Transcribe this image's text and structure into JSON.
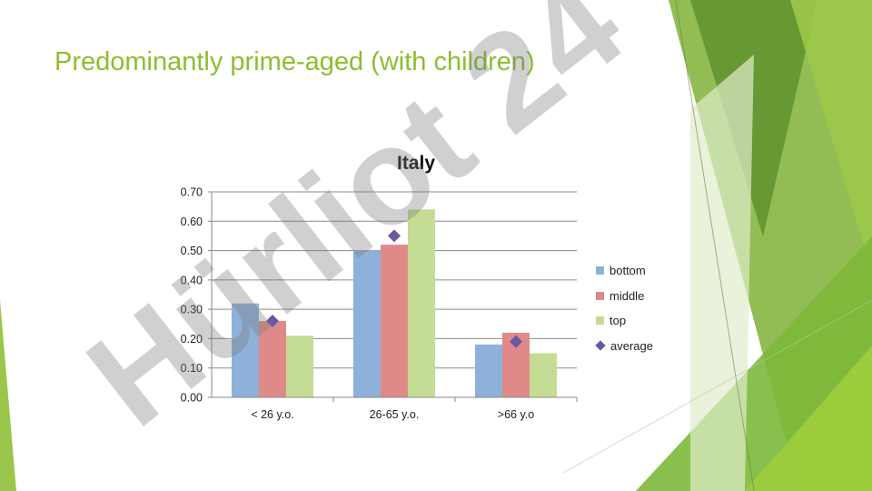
{
  "slide": {
    "title": "Predominantly prime-aged (with children)"
  },
  "watermark": {
    "text": "Hürliot 24"
  },
  "colors": {
    "title_green": "#8fbd2f",
    "deco_green_dark": "#5a9a1f",
    "deco_green_light": "#a9d15a",
    "bottom": "#8eb1da",
    "middle": "#df8a88",
    "top": "#c4dc94",
    "average": "#6b56a2"
  },
  "chart_data": {
    "type": "bar",
    "title": "Italy",
    "categories": [
      "< 26 y.o.",
      "26-65 y.o.",
      ">66 y.o"
    ],
    "series": [
      {
        "name": "bottom",
        "values": [
          0.32,
          0.5,
          0.18
        ]
      },
      {
        "name": "middle",
        "values": [
          0.26,
          0.52,
          0.22
        ]
      },
      {
        "name": "top",
        "values": [
          0.21,
          0.64,
          0.15
        ]
      }
    ],
    "average": {
      "name": "average",
      "values": [
        0.26,
        0.55,
        0.19
      ],
      "marker": "diamond"
    },
    "ylim": [
      0,
      0.7
    ],
    "yticks": [
      "0.00",
      "0.10",
      "0.20",
      "0.30",
      "0.40",
      "0.50",
      "0.60",
      "0.70"
    ],
    "xlabel": "",
    "ylabel": "",
    "grid": true,
    "legend_position": "right"
  }
}
